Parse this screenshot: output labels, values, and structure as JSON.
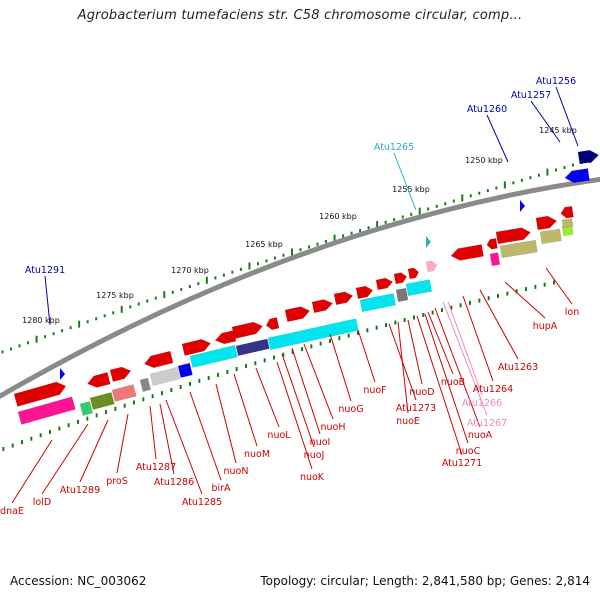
{
  "title": "Agrobacterium tumefaciens str. C58 chromosome circular, comp...",
  "footer": {
    "accession": "Accession: NC_003062",
    "topology": "Topology: circular; Length: 2,841,580 bp; Genes: 2,814"
  },
  "colors": {
    "backbone": "#888888",
    "tick": "#1a7a1a",
    "label_red": "#cc0000",
    "label_blue": "#0000aa",
    "label_cyan": "#33aacc",
    "label_pink": "#ee88bb"
  },
  "scale_labels": [
    "1245 kbp",
    "1250 kbp",
    "1255 kbp",
    "1260 kbp",
    "1265 kbp",
    "1270 kbp",
    "1275 kbp",
    "1280 kbp"
  ],
  "outer_labels": [
    "Atu1256",
    "Atu1257",
    "Atu1260",
    "Atu1265",
    "Atu1291"
  ],
  "inner_labels": [
    "lon",
    "hupA",
    "Atu1263",
    "Atu1264",
    "Atu1266",
    "Atu1267",
    "nuoA",
    "nuoB",
    "nuoC",
    "Atu1271",
    "nuoD",
    "nuoE",
    "Atu1273",
    "nuoF",
    "nuoG",
    "nuoH",
    "nuoI",
    "nuoJ",
    "nuoK",
    "nuoL",
    "nuoM",
    "nuoN",
    "birA",
    "Atu1285",
    "Atu1286",
    "Atu1287",
    "proS",
    "Atu1289",
    "lolD",
    "dnaE"
  ]
}
